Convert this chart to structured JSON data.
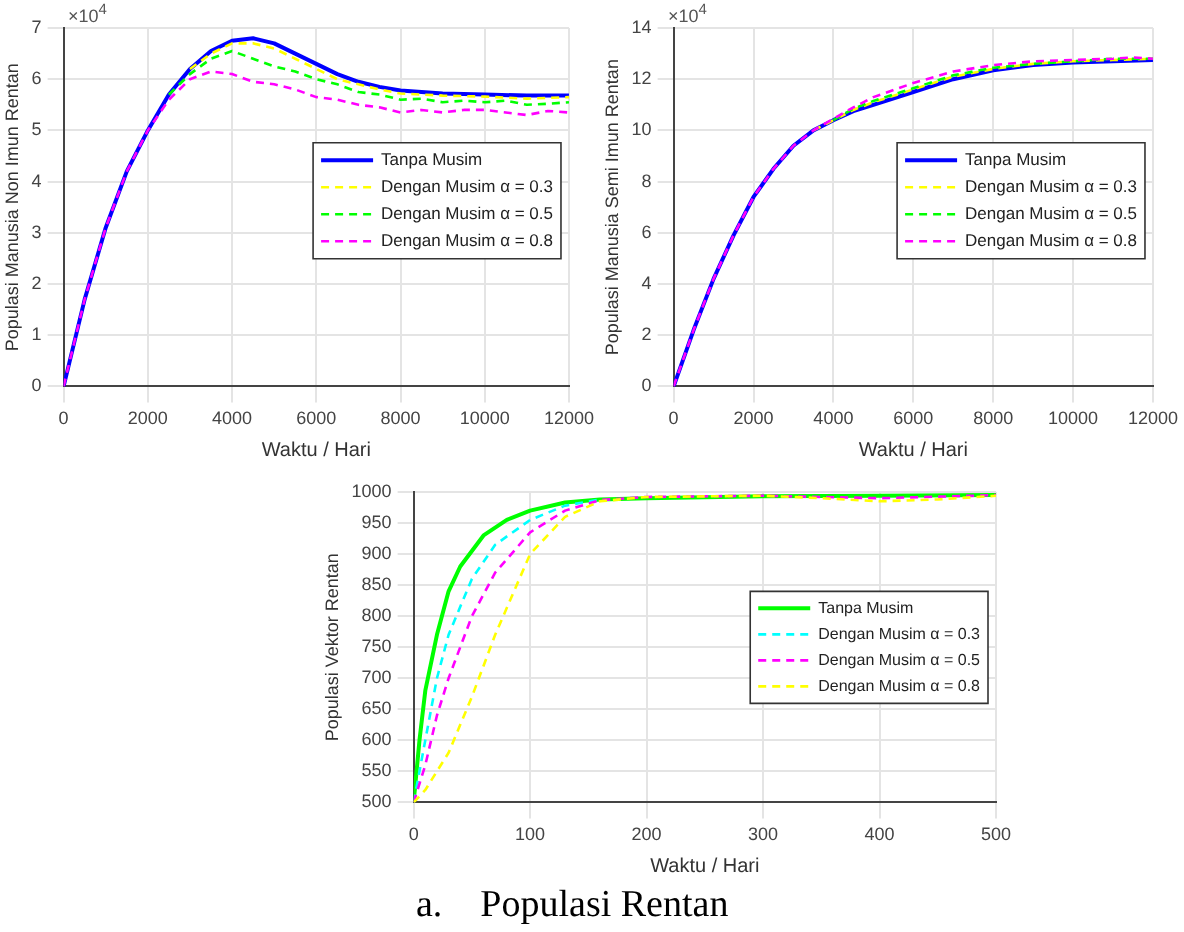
{
  "chart_data": [
    {
      "type": "line",
      "xlabel": "Waktu / Hari",
      "ylabel": "Populasi Manusia Non Imun Rentan",
      "annotations": [
        "×10$^{4}$"
      ],
      "xlim": [
        0,
        12000
      ],
      "xticks": [
        0,
        2000,
        4000,
        6000,
        8000,
        10000,
        12000
      ],
      "ylim": [
        0,
        7
      ],
      "yticks": [
        0,
        1,
        2,
        3,
        4,
        5,
        6,
        7
      ],
      "grid": true,
      "legend": "right",
      "marker": "none",
      "series": [
        {
          "name": "Tanpa Musim",
          "color": "#0000ff",
          "line_style": "solid",
          "x": [
            0,
            500,
            1000,
            1500,
            2000,
            2500,
            3000,
            3500,
            4000,
            4500,
            5000,
            5500,
            6000,
            6500,
            7000,
            7500,
            8000,
            9000,
            10000,
            11000,
            12000
          ],
          "values": [
            0,
            1.7,
            3.1,
            4.2,
            5.0,
            5.7,
            6.2,
            6.55,
            6.75,
            6.8,
            6.7,
            6.5,
            6.3,
            6.1,
            5.95,
            5.85,
            5.78,
            5.72,
            5.7,
            5.68,
            5.68
          ]
        },
        {
          "name": "Dengan Musim α = 0.3",
          "color": "#ffff00",
          "line_style": "dashed",
          "x": [
            3000,
            3500,
            4000,
            4500,
            5000,
            5500,
            6000,
            6500,
            7000,
            7500,
            8000,
            9000,
            10000,
            11000,
            12000
          ],
          "values": [
            6.2,
            6.5,
            6.7,
            6.7,
            6.6,
            6.4,
            6.2,
            6.0,
            5.9,
            5.8,
            5.72,
            5.68,
            5.66,
            5.62,
            5.65
          ]
        },
        {
          "name": "Dengan Musim α = 0.5",
          "color": "#00ff00",
          "line_style": "dashed",
          "x": [
            2500,
            3000,
            3500,
            4000,
            4500,
            5000,
            5500,
            6000,
            6500,
            7000,
            7500,
            8000,
            8500,
            9000,
            9500,
            10000,
            10500,
            11000,
            11500,
            12000
          ],
          "values": [
            5.7,
            6.1,
            6.4,
            6.55,
            6.4,
            6.25,
            6.15,
            6.0,
            5.9,
            5.75,
            5.7,
            5.6,
            5.62,
            5.55,
            5.58,
            5.55,
            5.58,
            5.5,
            5.52,
            5.55
          ]
        },
        {
          "name": "Dengan Musim α = 0.8",
          "color": "#ff00ff",
          "line_style": "dashed",
          "x": [
            0,
            500,
            1000,
            1500,
            2000,
            2500,
            3000,
            3500,
            4000,
            4500,
            5000,
            5500,
            6000,
            6500,
            7000,
            7500,
            8000,
            8500,
            9000,
            9500,
            10000,
            10500,
            11000,
            11500,
            12000
          ],
          "values": [
            0,
            1.7,
            3.1,
            4.2,
            5.0,
            5.6,
            6.0,
            6.15,
            6.1,
            5.95,
            5.9,
            5.8,
            5.65,
            5.6,
            5.5,
            5.45,
            5.35,
            5.4,
            5.35,
            5.4,
            5.4,
            5.35,
            5.3,
            5.38,
            5.35
          ]
        }
      ]
    },
    {
      "type": "line",
      "xlabel": "Waktu / Hari",
      "ylabel": "Populasi Manusia Semi Imun Rentan",
      "annotations": [
        "×10$^{4}$"
      ],
      "xlim": [
        0,
        12000
      ],
      "xticks": [
        0,
        2000,
        4000,
        6000,
        8000,
        10000,
        12000
      ],
      "ylim": [
        0,
        14
      ],
      "yticks": [
        0,
        2,
        4,
        6,
        8,
        10,
        12,
        14
      ],
      "grid": true,
      "legend": "right",
      "marker": "none",
      "series": [
        {
          "name": "Tanpa Musim",
          "color": "#0000ff",
          "line_style": "solid",
          "x": [
            0,
            500,
            1000,
            1500,
            2000,
            2500,
            3000,
            3500,
            4000,
            4500,
            5000,
            6000,
            7000,
            8000,
            9000,
            10000,
            11000,
            12000
          ],
          "values": [
            0,
            2.2,
            4.2,
            5.9,
            7.4,
            8.5,
            9.4,
            10.0,
            10.4,
            10.75,
            11.0,
            11.5,
            12.0,
            12.35,
            12.55,
            12.65,
            12.7,
            12.75
          ]
        },
        {
          "name": "Dengan Musim α = 0.3",
          "color": "#ffff00",
          "line_style": "dashed",
          "x": [
            3500,
            4000,
            4500,
            5000,
            6000,
            7000,
            8000,
            9000,
            10000,
            11000,
            12000
          ],
          "values": [
            10.0,
            10.4,
            10.8,
            11.1,
            11.6,
            12.1,
            12.4,
            12.6,
            12.7,
            12.75,
            12.8
          ]
        },
        {
          "name": "Dengan Musim α = 0.5",
          "color": "#00ff00",
          "line_style": "dashed",
          "x": [
            4000,
            4500,
            5000,
            6000,
            7000,
            8000,
            9000,
            10000,
            11000,
            12000
          ],
          "values": [
            10.4,
            10.85,
            11.15,
            11.65,
            12.15,
            12.45,
            12.6,
            12.7,
            12.8,
            12.8
          ]
        },
        {
          "name": "Dengan Musim α = 0.8",
          "color": "#ff00ff",
          "line_style": "dashed",
          "x": [
            0,
            500,
            1000,
            1500,
            2000,
            2500,
            3000,
            3500,
            4000,
            4500,
            5000,
            6000,
            7000,
            8000,
            9000,
            10000,
            11000,
            11500,
            12000
          ],
          "values": [
            0,
            2.2,
            4.2,
            5.9,
            7.4,
            8.5,
            9.4,
            10.0,
            10.45,
            10.9,
            11.3,
            11.85,
            12.3,
            12.55,
            12.7,
            12.75,
            12.8,
            12.85,
            12.8
          ]
        }
      ]
    },
    {
      "type": "line",
      "xlabel": "Waktu / Hari",
      "ylabel": "Populasi Vektor Rentan",
      "annotations": [
        "a.    Populasi Rentan"
      ],
      "xlim": [
        0,
        500
      ],
      "xticks": [
        0,
        100,
        200,
        300,
        400,
        500
      ],
      "ylim": [
        500,
        1000
      ],
      "yticks": [
        500,
        550,
        600,
        650,
        700,
        750,
        800,
        850,
        900,
        950,
        1000
      ],
      "grid": true,
      "legend": "right",
      "marker": "none",
      "series": [
        {
          "name": "Tanpa Musim",
          "color": "#00ff00",
          "line_style": "solid",
          "x": [
            0,
            5,
            10,
            20,
            30,
            40,
            60,
            80,
            100,
            130,
            160,
            200,
            300,
            400,
            500
          ],
          "values": [
            500,
            600,
            680,
            770,
            840,
            880,
            930,
            955,
            970,
            983,
            988,
            990,
            993,
            994,
            995
          ]
        },
        {
          "name": "Dengan Musim α = 0.3",
          "color": "#00ffff",
          "line_style": "dashed",
          "x": [
            0,
            10,
            20,
            30,
            50,
            70,
            100,
            130,
            160
          ],
          "values": [
            500,
            600,
            700,
            770,
            860,
            915,
            955,
            978,
            988
          ]
        },
        {
          "name": "Dengan Musim α = 0.5",
          "color": "#ff00ff",
          "line_style": "dashed",
          "x": [
            0,
            10,
            20,
            30,
            50,
            70,
            100,
            130,
            160,
            200,
            300,
            400,
            500
          ],
          "values": [
            500,
            560,
            640,
            700,
            800,
            870,
            935,
            970,
            987,
            992,
            994,
            990,
            995
          ]
        },
        {
          "name": "Dengan Musim α = 0.8",
          "color": "#ffff00",
          "line_style": "dashed",
          "x": [
            0,
            10,
            30,
            50,
            70,
            100,
            130,
            160,
            200,
            300,
            350,
            400,
            450,
            500
          ],
          "values": [
            500,
            520,
            580,
            670,
            770,
            900,
            960,
            985,
            992,
            994,
            990,
            985,
            988,
            994
          ]
        }
      ]
    }
  ]
}
